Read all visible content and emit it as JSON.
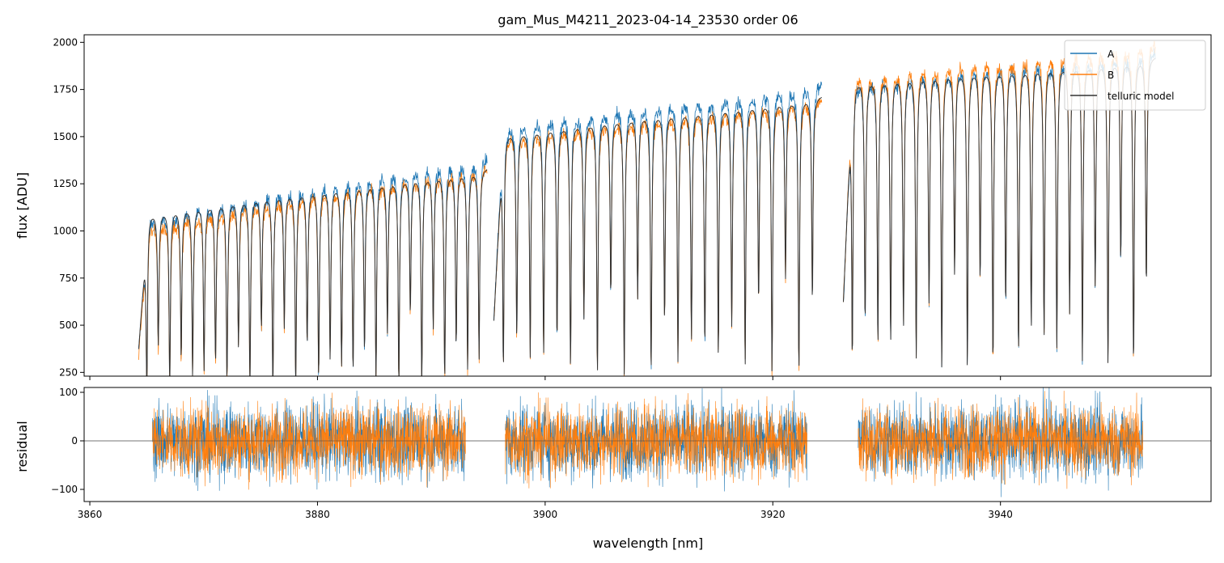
{
  "chart_data": [
    {
      "type": "line",
      "title": "gam_Mus_M4211_2023-04-14_23530  order 06",
      "xlabel": "",
      "ylabel": "flux [ADU]",
      "xlim": [
        3859.5,
        3958.5
      ],
      "ylim": [
        230,
        2040
      ],
      "yticks": [
        250,
        500,
        750,
        1000,
        1250,
        1500,
        1750,
        2000
      ],
      "ytick_labels": [
        "250",
        "500",
        "750",
        "1000",
        "1250",
        "1500",
        "1750",
        "2000"
      ],
      "xticks": [
        3860,
        3880,
        3900,
        3920,
        3940
      ],
      "legend_position": "top-right",
      "legend": [
        "A",
        "B",
        "telluric model"
      ],
      "segments": [
        {
          "x_range": [
            3864.3,
            3894.9
          ],
          "continuum_A": [
            1050,
            1390
          ],
          "continuum_B": [
            1010,
            1350
          ],
          "model_continuum": [
            1080,
            1340
          ],
          "lines": 30
        },
        {
          "x_range": [
            3895.5,
            3924.3
          ],
          "continuum_A": [
            1540,
            1780
          ],
          "continuum_B": [
            1490,
            1700
          ],
          "model_continuum": [
            1510,
            1720
          ],
          "lines": 24
        },
        {
          "x_range": [
            3926.2,
            3953.6
          ],
          "continuum_A": [
            1790,
            1960
          ],
          "continuum_B": [
            1820,
            2000
          ],
          "model_continuum": [
            1800,
            1930
          ],
          "lines": 24
        }
      ],
      "series": [
        {
          "name": "A",
          "color": "#1f77b4"
        },
        {
          "name": "B",
          "color": "#ff7f0e"
        },
        {
          "name": "telluric model",
          "color": "#333333"
        }
      ]
    },
    {
      "type": "line",
      "title": "",
      "xlabel": "wavelength [nm]",
      "ylabel": "residual",
      "xlim": [
        3859.5,
        3958.5
      ],
      "ylim": [
        -125,
        110
      ],
      "yticks": [
        -100,
        0,
        100
      ],
      "ytick_labels": [
        "−100",
        "0",
        "100"
      ],
      "xticks": [
        3860,
        3880,
        3900,
        3920,
        3940
      ],
      "xtick_labels": [
        "3860",
        "3880",
        "3900",
        "3920",
        "3940"
      ],
      "reference_line": 0,
      "residual_ranges": [
        [
          3865.5,
          3893.0
        ],
        [
          3896.5,
          3923.0
        ],
        [
          3927.5,
          3952.5
        ]
      ],
      "noise_amplitude": 55,
      "series": [
        {
          "name": "A",
          "color": "#1f77b4"
        },
        {
          "name": "B",
          "color": "#ff7f0e"
        }
      ]
    }
  ]
}
